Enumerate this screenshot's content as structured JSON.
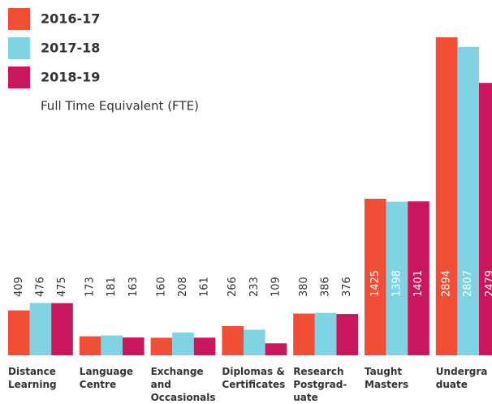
{
  "chart_data": {
    "type": "bar",
    "subtitle": "Full Time Equivalent (FTE)",
    "categories": [
      "Distance Learning",
      "Language Centre",
      "Exchange and Occasionals",
      "Diplomas & Certificates",
      "Research Postgrad-uate",
      "Taught Masters",
      "Undergraduate"
    ],
    "series": [
      {
        "name": "2016-17",
        "color": "#f04e37",
        "values": [
          409,
          173,
          160,
          266,
          380,
          1425,
          2894
        ]
      },
      {
        "name": "2017-18",
        "color": "#7fd3e3",
        "values": [
          476,
          181,
          208,
          233,
          386,
          1398,
          2807
        ]
      },
      {
        "name": "2018-19",
        "color": "#c8175d",
        "values": [
          475,
          163,
          161,
          109,
          376,
          1401,
          2479
        ]
      }
    ],
    "legend": "top-left"
  }
}
